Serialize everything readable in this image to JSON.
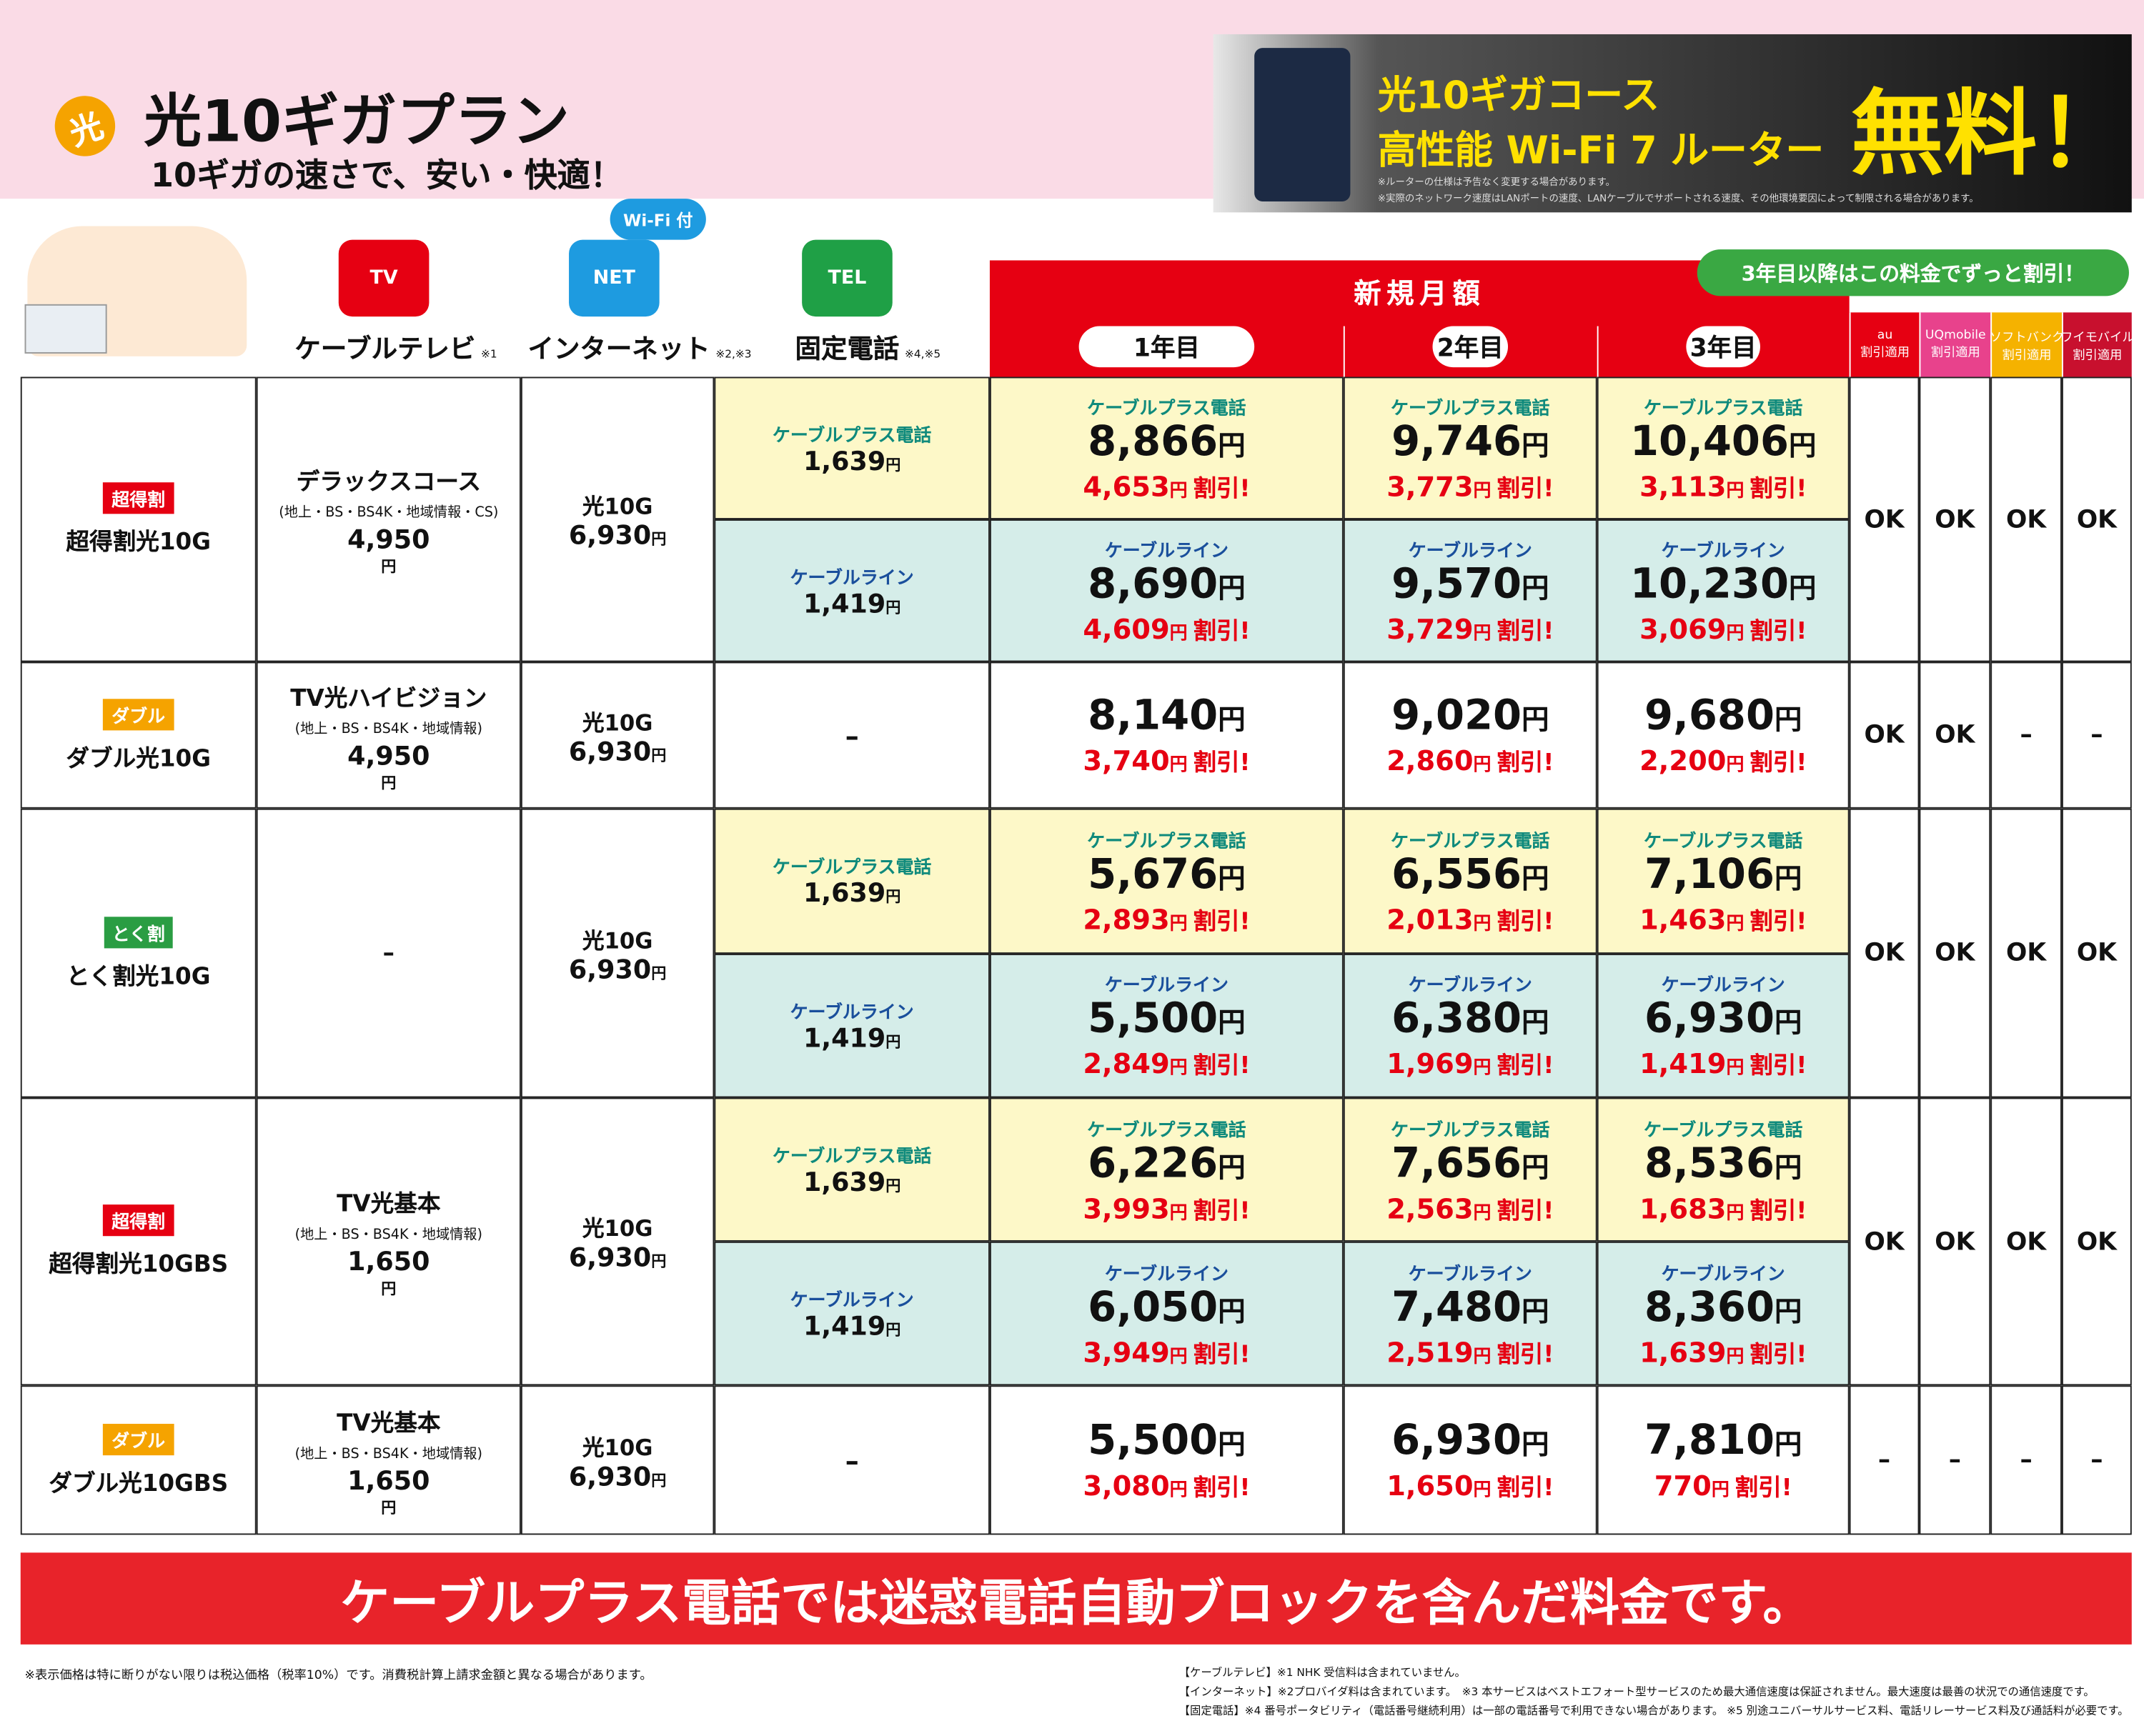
{
  "header": {
    "logo": "光",
    "title": "光10ギガプラン",
    "subtitle": "10ギガの速さで、安い・快適！"
  },
  "promo": {
    "line1": "光10ギガコース",
    "line2": "高性能 Wi-Fi 7 ルーター",
    "badge": "無料！",
    "note1": "※ルーターの仕様は予告なく変更する場合があります。",
    "note2": "※実際のネットワーク速度はLANポートの速度、LANケーブルでサポートされる速度、その他環境要因によって制限される場合があります。"
  },
  "columns": {
    "tv_icon": "TV",
    "tv": "ケーブルテレビ",
    "tv_note": "※1",
    "wifi": "Wi-Fi 付",
    "net_icon": "NET",
    "net": "インターネット",
    "net_note": "※2,※3",
    "tel_icon": "TEL",
    "tel": "固定電話",
    "tel_note": "※4,※5",
    "monthly": "新規月額",
    "callout": "3年目以降はこの料金でずっと割引！",
    "years": [
      "1年目",
      "2年目",
      "3年目"
    ],
    "carriers": [
      {
        "name": "au",
        "sub": "割引適用"
      },
      {
        "name": "UQmobile",
        "sub": "割引適用"
      },
      {
        "name": "ソフトバンク",
        "sub": "割引適用"
      },
      {
        "name": "ワイモバイル",
        "sub": "割引適用"
      }
    ]
  },
  "units": {
    "yen": "円",
    "discount": "割引!"
  },
  "rows": [
    {
      "badge": "超得割",
      "name": "超得割光10G",
      "tv": {
        "name": "デラックスコース",
        "detail": "(地上・BS・BS4K・地域情報・CS)",
        "price": "4,950"
      },
      "net": {
        "name": "光10G",
        "price": "6,930"
      },
      "options": [
        {
          "phone": "ケーブルプラス電話",
          "price": "1,639",
          "years": [
            {
              "price": "8,866",
              "discount": "4,653"
            },
            {
              "price": "9,746",
              "discount": "3,773"
            },
            {
              "price": "10,406",
              "discount": "3,113"
            }
          ]
        },
        {
          "phone": "ケーブルライン",
          "price": "1,419",
          "years": [
            {
              "price": "8,690",
              "discount": "4,609"
            },
            {
              "price": "9,570",
              "discount": "3,729"
            },
            {
              "price": "10,230",
              "discount": "3,069"
            }
          ]
        }
      ],
      "carriers": [
        "OK",
        "OK",
        "OK",
        "OK"
      ]
    },
    {
      "badge": "ダブル",
      "name": "ダブル光10G",
      "tv": {
        "name": "TV光ハイビジョン",
        "detail": "(地上・BS・BS4K・地域情報)",
        "price": "4,950"
      },
      "net": {
        "name": "光10G",
        "price": "6,930"
      },
      "options": [
        {
          "phone": "–",
          "years": [
            {
              "price": "8,140",
              "discount": "3,740"
            },
            {
              "price": "9,020",
              "discount": "2,860"
            },
            {
              "price": "9,680",
              "discount": "2,200"
            }
          ]
        }
      ],
      "carriers": [
        "OK",
        "OK",
        "–",
        "–"
      ]
    },
    {
      "badge": "とく割",
      "name": "とく割光10G",
      "tv": {
        "name": "–"
      },
      "net": {
        "name": "光10G",
        "price": "6,930"
      },
      "options": [
        {
          "phone": "ケーブルプラス電話",
          "price": "1,639",
          "years": [
            {
              "price": "5,676",
              "discount": "2,893"
            },
            {
              "price": "6,556",
              "discount": "2,013"
            },
            {
              "price": "7,106",
              "discount": "1,463"
            }
          ]
        },
        {
          "phone": "ケーブルライン",
          "price": "1,419",
          "years": [
            {
              "price": "5,500",
              "discount": "2,849"
            },
            {
              "price": "6,380",
              "discount": "1,969"
            },
            {
              "price": "6,930",
              "discount": "1,419"
            }
          ]
        }
      ],
      "carriers": [
        "OK",
        "OK",
        "OK",
        "OK"
      ]
    },
    {
      "badge": "超得割",
      "name": "超得割光10GBS",
      "tv": {
        "name": "TV光基本",
        "detail": "(地上・BS・BS4K・地域情報)",
        "price": "1,650"
      },
      "net": {
        "name": "光10G",
        "price": "6,930"
      },
      "options": [
        {
          "phone": "ケーブルプラス電話",
          "price": "1,639",
          "years": [
            {
              "price": "6,226",
              "discount": "3,993"
            },
            {
              "price": "7,656",
              "discount": "2,563"
            },
            {
              "price": "8,536",
              "discount": "1,683"
            }
          ]
        },
        {
          "phone": "ケーブルライン",
          "price": "1,419",
          "years": [
            {
              "price": "6,050",
              "discount": "3,949"
            },
            {
              "price": "7,480",
              "discount": "2,519"
            },
            {
              "price": "8,360",
              "discount": "1,639"
            }
          ]
        }
      ],
      "carriers": [
        "OK",
        "OK",
        "OK",
        "OK"
      ]
    },
    {
      "badge": "ダブル",
      "name": "ダブル光10GBS",
      "tv": {
        "name": "TV光基本",
        "detail": "(地上・BS・BS4K・地域情報)",
        "price": "1,650"
      },
      "net": {
        "name": "光10G",
        "price": "6,930"
      },
      "options": [
        {
          "phone": "–",
          "years": [
            {
              "price": "5,500",
              "discount": "3,080"
            },
            {
              "price": "6,930",
              "discount": "1,650"
            },
            {
              "price": "7,810",
              "discount": "770"
            }
          ]
        }
      ],
      "carriers": [
        "–",
        "–",
        "–",
        "–"
      ]
    }
  ],
  "banner": "ケーブルプラス電話では迷惑電話自動ブロックを含んだ料金です。",
  "footnotes": {
    "left": "※表示価格は特に断りがない限りは税込価格（税率10%）です。消費税計算上請求金額と異なる場合があります。",
    "right": [
      "【ケーブルテレビ】※1 NHK 受信料は含まれていません。",
      "【インターネット】※2プロバイダ料は含まれています。　※3 本サービスはベストエフォート型サービスのため最大通信速度は保証されません。最大速度は最善の状況での通信速度です。",
      "【固定電話】※4 番号ポータビリティ（電話番号継続利用）は一部の電話番号で利用できない場合があります。 ※5 別途ユニバーサルサービス料、電話リレーサービス料及び通話料が必要です。"
    ]
  }
}
